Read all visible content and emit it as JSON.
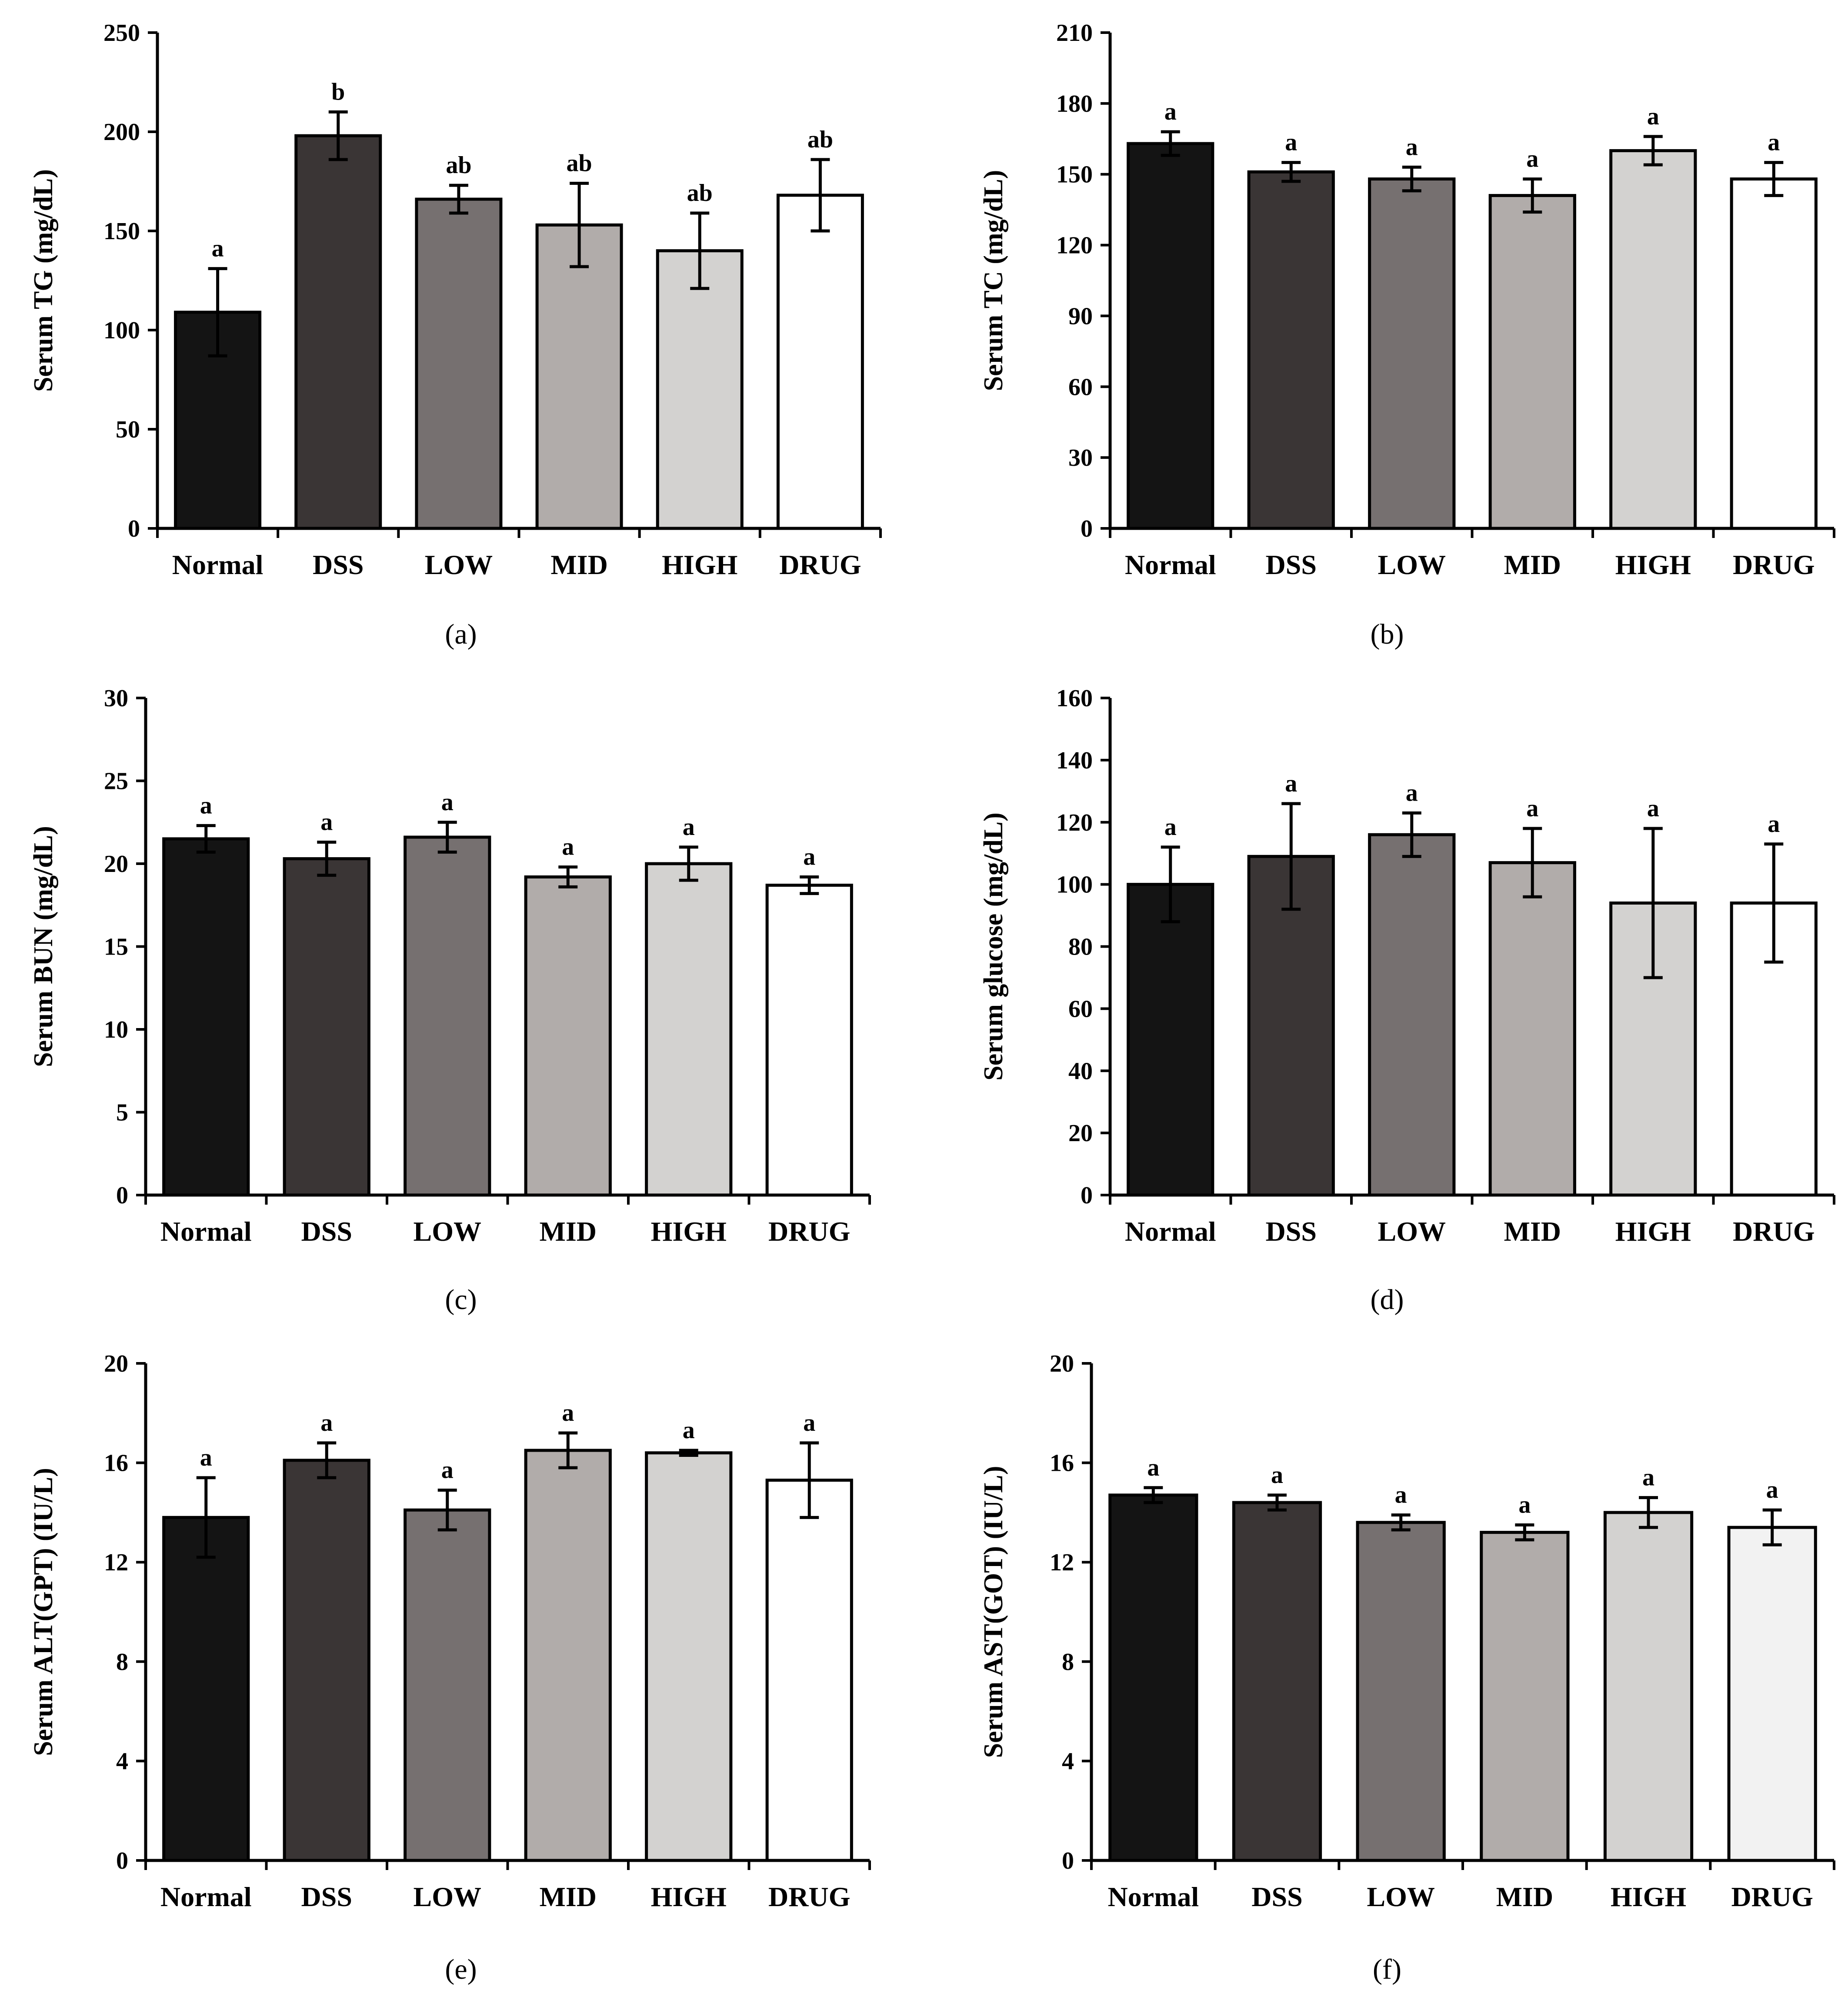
{
  "group_colors": [
    "#141414",
    "#3a3535",
    "#767070",
    "#b1acaa",
    "#d3d2d0",
    "#ffffff"
  ],
  "chart_data": [
    {
      "type": "bar",
      "caption": "(a)",
      "ylabel": "Serum TG (mg/dL)",
      "categories": [
        "Normal",
        "DSS",
        "LOW",
        "MID",
        "HIGH",
        "DRUG"
      ],
      "values": [
        109,
        198,
        166,
        153,
        140,
        168
      ],
      "errors": [
        22,
        12,
        7,
        21,
        19,
        18
      ],
      "significance": [
        "a",
        "b",
        "ab",
        "ab",
        "ab",
        "ab"
      ],
      "ylim": [
        0,
        250
      ],
      "yticks": [
        0,
        50,
        100,
        150,
        200,
        250
      ],
      "colors": [
        "#141414",
        "#3a3535",
        "#767070",
        "#b1acaa",
        "#d3d2d0",
        "#ffffff"
      ]
    },
    {
      "type": "bar",
      "caption": "(b)",
      "ylabel": "Serum TC (mg/dL)",
      "categories": [
        "Normal",
        "DSS",
        "LOW",
        "MID",
        "HIGH",
        "DRUG"
      ],
      "values": [
        163,
        151,
        148,
        141,
        160,
        148
      ],
      "errors": [
        5,
        4,
        5,
        7,
        6,
        7
      ],
      "significance": [
        "a",
        "a",
        "a",
        "a",
        "a",
        "a"
      ],
      "ylim": [
        0,
        210
      ],
      "yticks": [
        0,
        30,
        60,
        90,
        120,
        150,
        180,
        210
      ],
      "colors": [
        "#141414",
        "#3a3535",
        "#767070",
        "#b1acaa",
        "#d3d2d0",
        "#ffffff"
      ]
    },
    {
      "type": "bar",
      "caption": "(c)",
      "ylabel": "Serum BUN (mg/dL)",
      "categories": [
        "Normal",
        "DSS",
        "LOW",
        "MID",
        "HIGH",
        "DRUG"
      ],
      "values": [
        21.5,
        20.3,
        21.6,
        19.2,
        20.0,
        18.7
      ],
      "errors": [
        0.8,
        1.0,
        0.9,
        0.6,
        1.0,
        0.5
      ],
      "significance": [
        "a",
        "a",
        "a",
        "a",
        "a",
        "a"
      ],
      "ylim": [
        0,
        30
      ],
      "yticks": [
        0,
        5,
        10,
        15,
        20,
        25,
        30
      ],
      "colors": [
        "#141414",
        "#3a3535",
        "#767070",
        "#b1acaa",
        "#d3d2d0",
        "#ffffff"
      ]
    },
    {
      "type": "bar",
      "caption": "(d)",
      "ylabel": "Serum glucose (mg/dL)",
      "categories": [
        "Normal",
        "DSS",
        "LOW",
        "MID",
        "HIGH",
        "DRUG"
      ],
      "values": [
        100,
        109,
        116,
        107,
        94,
        94
      ],
      "errors": [
        12,
        17,
        7,
        11,
        24,
        19
      ],
      "significance": [
        "a",
        "a",
        "a",
        "a",
        "a",
        "a"
      ],
      "ylim": [
        0,
        160
      ],
      "yticks": [
        0,
        20,
        40,
        60,
        80,
        100,
        120,
        140,
        160
      ],
      "colors": [
        "#141414",
        "#3a3535",
        "#767070",
        "#b1acaa",
        "#d3d2d0",
        "#ffffff"
      ]
    },
    {
      "type": "bar",
      "caption": "(e)",
      "ylabel": "Serum ALT(GPT) (IU/L)",
      "categories": [
        "Normal",
        "DSS",
        "LOW",
        "MID",
        "HIGH",
        "DRUG"
      ],
      "values": [
        13.8,
        16.1,
        14.1,
        16.5,
        16.4,
        15.3
      ],
      "errors": [
        1.6,
        0.7,
        0.8,
        0.7,
        0.1,
        1.5
      ],
      "significance": [
        "a",
        "a",
        "a",
        "a",
        "a",
        "a"
      ],
      "ylim": [
        0,
        20
      ],
      "yticks": [
        0,
        4,
        8,
        12,
        16,
        20
      ],
      "colors": [
        "#141414",
        "#3a3535",
        "#767070",
        "#b1acaa",
        "#d3d2d0",
        "#ffffff"
      ]
    },
    {
      "type": "bar",
      "caption": "(f)",
      "ylabel": "Serum AST(GOT) (IU/L)",
      "categories": [
        "Normal",
        "DSS",
        "LOW",
        "MID",
        "HIGH",
        "DRUG"
      ],
      "values": [
        14.7,
        14.4,
        13.6,
        13.2,
        14.0,
        13.4
      ],
      "errors": [
        0.3,
        0.3,
        0.3,
        0.3,
        0.6,
        0.7
      ],
      "significance": [
        "a",
        "a",
        "a",
        "a",
        "a",
        "a"
      ],
      "ylim": [
        0,
        20
      ],
      "yticks": [
        0,
        4,
        8,
        12,
        16,
        20
      ],
      "colors": [
        "#141414",
        "#3a3535",
        "#767070",
        "#b1acaa",
        "#d3d2d0",
        "#f2f2f2"
      ]
    }
  ]
}
